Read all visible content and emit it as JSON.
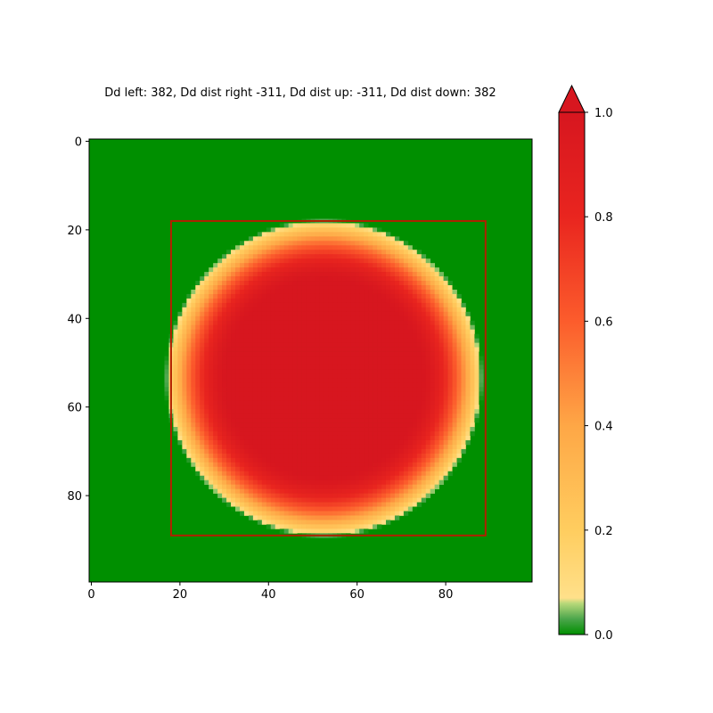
{
  "chart_data": {
    "type": "heatmap",
    "title": "Dd left: 382, Dd dist right -311, Dd dist up: -311, Dd dist down: 382",
    "grid_size": 100,
    "xlim": [
      0,
      99
    ],
    "ylim": [
      99,
      0
    ],
    "x_ticks": [
      0,
      20,
      40,
      60,
      80
    ],
    "y_ticks": [
      0,
      20,
      40,
      60,
      80
    ],
    "field": {
      "shape": "disc",
      "center": [
        52.5,
        53.5
      ],
      "plateau_radius": 22,
      "outer_radius": 36,
      "max_value": 1.0,
      "min_value": 0.0
    },
    "bounding_box": {
      "x_min": 18,
      "x_max": 89,
      "y_min": 18,
      "y_max": 89,
      "color": "#b22000"
    },
    "colorbar": {
      "range": [
        0.0,
        1.0
      ],
      "ticks": [
        "0.0",
        "0.2",
        "0.4",
        "0.6",
        "0.8",
        "1.0"
      ],
      "extend": "max",
      "colormap": [
        {
          "value": 0.0,
          "color": "#008f00"
        },
        {
          "value": 0.03,
          "color": "#4ca64c"
        },
        {
          "value": 0.06,
          "color": "#b9d97a"
        },
        {
          "value": 0.07,
          "color": "#ffe08a"
        },
        {
          "value": 0.2,
          "color": "#ffcd5f"
        },
        {
          "value": 0.4,
          "color": "#fea746"
        },
        {
          "value": 0.6,
          "color": "#fc5c2c"
        },
        {
          "value": 0.8,
          "color": "#e9251f"
        },
        {
          "value": 1.0,
          "color": "#d7161f"
        }
      ]
    }
  }
}
